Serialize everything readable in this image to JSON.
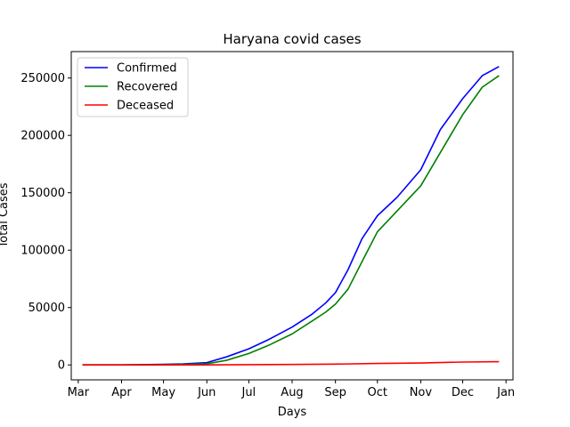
{
  "chart_data": {
    "type": "line",
    "title": "Haryana covid cases",
    "xlabel": "Days",
    "ylabel": "Total Cases",
    "x_ticks": [
      "Mar",
      "Apr",
      "May",
      "Jun",
      "Jul",
      "Aug",
      "Sep",
      "Oct",
      "Nov",
      "Dec",
      "Jan"
    ],
    "y_ticks": [
      0,
      50000,
      100000,
      150000,
      200000,
      250000
    ],
    "y_tick_labels": [
      "0",
      "50000",
      "100000",
      "150000",
      "200000",
      "250000"
    ],
    "xlim": [
      "2020-02-25",
      "2021-01-06"
    ],
    "ylim": [
      -13000,
      273000
    ],
    "grid": false,
    "legend": "upper-left",
    "series": [
      {
        "name": "Confirmed",
        "color": "#0000ff",
        "points": [
          [
            "2020-03-04",
            0
          ],
          [
            "2020-04-01",
            50
          ],
          [
            "2020-05-01",
            500
          ],
          [
            "2020-05-15",
            900
          ],
          [
            "2020-06-01",
            2000
          ],
          [
            "2020-06-15",
            7000
          ],
          [
            "2020-07-01",
            14000
          ],
          [
            "2020-07-15",
            22000
          ],
          [
            "2020-08-01",
            33000
          ],
          [
            "2020-08-15",
            44000
          ],
          [
            "2020-08-25",
            54000
          ],
          [
            "2020-09-01",
            63000
          ],
          [
            "2020-09-10",
            83000
          ],
          [
            "2020-09-20",
            110000
          ],
          [
            "2020-10-01",
            130000
          ],
          [
            "2020-10-15",
            146000
          ],
          [
            "2020-11-01",
            170000
          ],
          [
            "2020-11-15",
            205000
          ],
          [
            "2020-12-01",
            232000
          ],
          [
            "2020-12-15",
            252000
          ],
          [
            "2020-12-27",
            260000
          ]
        ]
      },
      {
        "name": "Recovered",
        "color": "#008000",
        "points": [
          [
            "2020-03-04",
            0
          ],
          [
            "2020-04-01",
            20
          ],
          [
            "2020-05-01",
            200
          ],
          [
            "2020-05-15",
            500
          ],
          [
            "2020-06-01",
            1000
          ],
          [
            "2020-06-15",
            4000
          ],
          [
            "2020-07-01",
            10000
          ],
          [
            "2020-07-15",
            17000
          ],
          [
            "2020-08-01",
            27000
          ],
          [
            "2020-08-15",
            38000
          ],
          [
            "2020-08-25",
            46000
          ],
          [
            "2020-09-01",
            53000
          ],
          [
            "2020-09-10",
            66000
          ],
          [
            "2020-09-20",
            90000
          ],
          [
            "2020-10-01",
            116000
          ],
          [
            "2020-10-15",
            134000
          ],
          [
            "2020-11-01",
            156000
          ],
          [
            "2020-11-15",
            185000
          ],
          [
            "2020-12-01",
            218000
          ],
          [
            "2020-12-15",
            242000
          ],
          [
            "2020-12-27",
            252000
          ]
        ]
      },
      {
        "name": "Deceased",
        "color": "#ff0000",
        "points": [
          [
            "2020-03-04",
            0
          ],
          [
            "2020-05-01",
            10
          ],
          [
            "2020-06-01",
            30
          ],
          [
            "2020-07-01",
            200
          ],
          [
            "2020-08-01",
            400
          ],
          [
            "2020-09-01",
            700
          ],
          [
            "2020-10-01",
            1300
          ],
          [
            "2020-11-01",
            1700
          ],
          [
            "2020-12-01",
            2500
          ],
          [
            "2020-12-27",
            2800
          ]
        ]
      }
    ]
  }
}
